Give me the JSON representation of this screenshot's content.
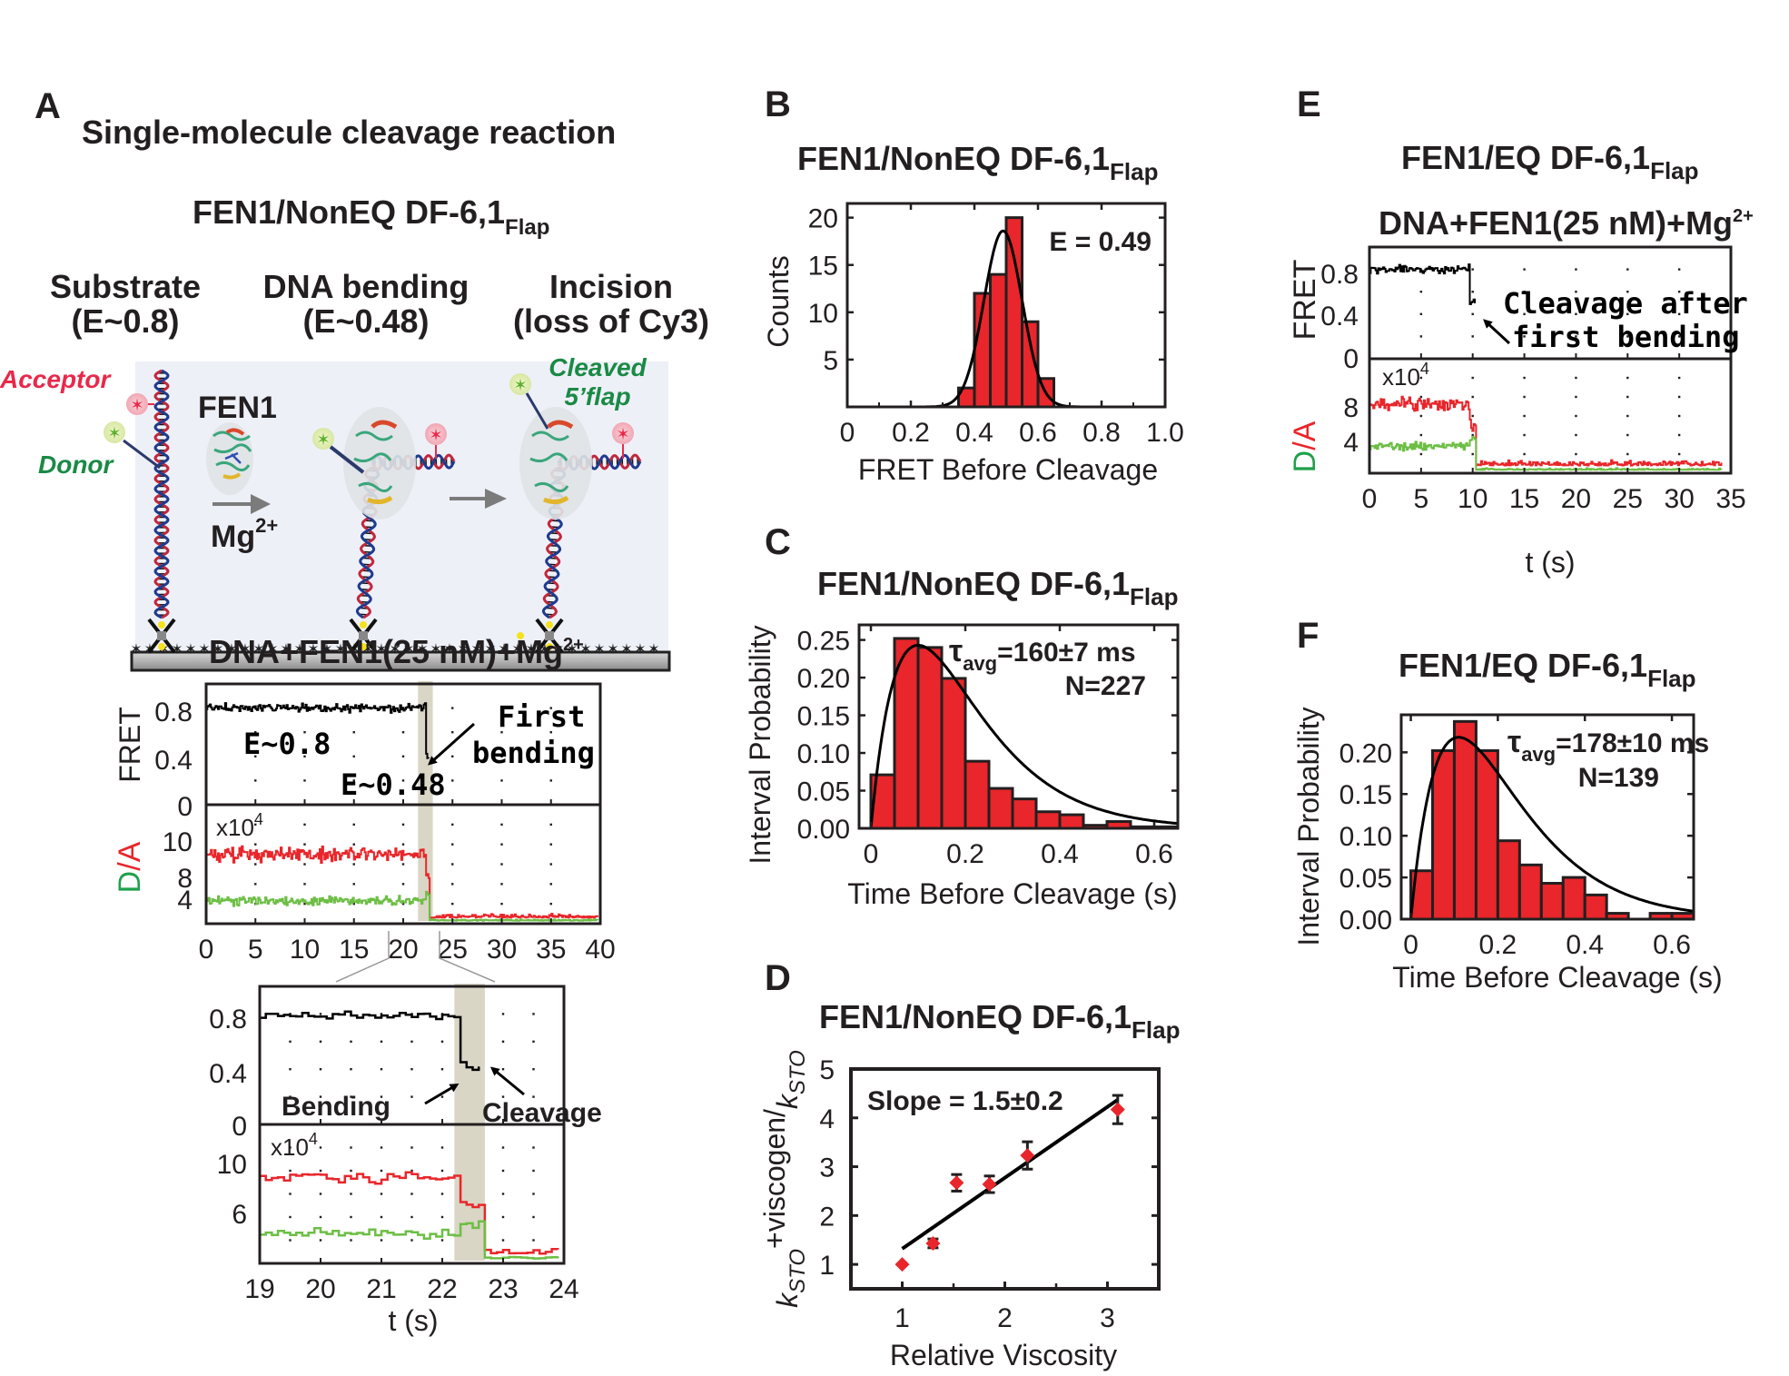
{
  "panel_labels": {
    "A": "A",
    "B": "B",
    "C": "C",
    "D": "D",
    "E": "E",
    "F": "F"
  },
  "panelA": {
    "title": "Single-molecule cleavage reaction",
    "subtitle_main": "FEN1/NonEQ DF-6,1",
    "subtitle_sub": "Flap",
    "stages": [
      {
        "line1": "Substrate",
        "line2": "(E~0.8)"
      },
      {
        "line1": "DNA bending",
        "line2": "(E~0.48)"
      },
      {
        "line1": "Incision",
        "line2": "(loss of Cy3)"
      }
    ],
    "schematic": {
      "acceptor_label": "Acceptor",
      "donor_label": "Donor",
      "enzyme_label": "FEN1",
      "cofactor_main": "Mg",
      "cofactor_sup": "2+",
      "cleaved_line1": "Cleaved",
      "cleaved_line2": "5’flap",
      "colors": {
        "acceptor": "#e8294a",
        "donor": "#1a8a45",
        "background": "#eef0f8"
      }
    },
    "trace_title_main": "DNA+FEN1(25 nM)+Mg",
    "trace_title_sup": "2+",
    "trace": {
      "fret_label": "FRET",
      "da_label_d": "D",
      "da_label_slash": "/",
      "da_label_a": "A",
      "multiplier_main": "x10",
      "multiplier_sup": "4",
      "fret_ticks": [
        "0.8",
        "0.4",
        "0"
      ],
      "da_ticks": [
        "10",
        "8",
        "4"
      ],
      "x_ticks": [
        "0",
        "5",
        "10",
        "15",
        "20",
        "25",
        "30",
        "35",
        "40"
      ],
      "annotation_high": "E~0.8",
      "annotation_low": "E~0.48",
      "annotation_arrow_line1": "First",
      "annotation_arrow_line2": "bending",
      "xlim": [
        0,
        40
      ],
      "fret_ylim": [
        0,
        1.0
      ],
      "da_ylim": [
        0,
        12
      ],
      "highlight_window_s": [
        21.5,
        23.0
      ],
      "zoom_window_s": [
        19,
        24
      ]
    },
    "zoom_trace": {
      "fret_ticks": [
        "0.8",
        "0.4",
        "0"
      ],
      "da_ticks": [
        "10",
        "6"
      ],
      "x_ticks": [
        "19",
        "20",
        "21",
        "22",
        "23",
        "24"
      ],
      "multiplier_main": "x10",
      "multiplier_sup": "4",
      "xlabel": "t (s)",
      "bending_label": "Bending",
      "cleavage_label": "Cleavage",
      "xlim": [
        19,
        24
      ],
      "highlight_window_s": [
        22.2,
        22.7
      ]
    }
  },
  "chart_data": [
    {
      "id": "B",
      "type": "bar",
      "title": "FEN1/NonEQ DF-6,1 Flap",
      "xlabel": "FRET Before Cleavage",
      "ylabel": "Counts",
      "bin_edges": [
        0.35,
        0.4,
        0.45,
        0.5,
        0.55,
        0.6,
        0.65
      ],
      "values": [
        2,
        12,
        14,
        20,
        9,
        3
      ],
      "fit": {
        "type": "gaussian",
        "mean": 0.49,
        "sigma": 0.06,
        "peak": 18.6
      },
      "annotation": "E = 0.49",
      "xlim": [
        0,
        1.0
      ],
      "ylim": [
        0,
        21.5
      ],
      "x_ticks": [
        "0",
        "0.2",
        "0.4",
        "0.6",
        "0.8",
        "1.0"
      ],
      "y_ticks": [
        "5",
        "10",
        "15",
        "20"
      ],
      "bar_color": "#e8262b"
    },
    {
      "id": "C",
      "type": "bar",
      "title": "FEN1/NonEQ DF-6,1 Flap",
      "xlabel": "Time Before Cleavage (s)",
      "ylabel": "Interval Probability",
      "bin_width": 0.05,
      "bin_start": 0,
      "values": [
        0.071,
        0.252,
        0.24,
        0.199,
        0.089,
        0.053,
        0.039,
        0.022,
        0.018,
        0.004,
        0.009,
        0.002,
        0.002
      ],
      "fit": {
        "type": "gamma",
        "peak_x": 0.1,
        "peak_y": 0.243
      },
      "annotation_tau": "τ",
      "annotation_sub": "avg",
      "annotation_value": "=160±7 ms",
      "annotation_n": "N=227",
      "xlim": [
        -0.025,
        0.65
      ],
      "ylim": [
        0,
        0.27
      ],
      "x_ticks": [
        "0",
        "0.2",
        "0.4",
        "0.6"
      ],
      "y_ticks": [
        "0.00",
        "0.05",
        "0.10",
        "0.15",
        "0.20",
        "0.25"
      ],
      "bar_color": "#e8262b"
    },
    {
      "id": "D",
      "type": "scatter",
      "title": "FEN1/NonEQ DF-6,1 Flap",
      "xlabel": "Relative Viscosity",
      "ylabel": "k_STO +viscogen / k_STO",
      "x": [
        1.0,
        1.3,
        1.53,
        1.85,
        2.22,
        3.1
      ],
      "y": [
        1.0,
        1.43,
        2.67,
        2.64,
        3.23,
        4.17
      ],
      "yerr": [
        0.0,
        0.09,
        0.17,
        0.17,
        0.28,
        0.29
      ],
      "fit_line": {
        "x": [
          1.0,
          3.1
        ],
        "y": [
          1.32,
          4.37
        ]
      },
      "annotation": "Slope = 1.5±0.2",
      "xlim": [
        0.5,
        3.5
      ],
      "ylim": [
        0.5,
        5
      ],
      "x_ticks": [
        "1",
        "2",
        "3"
      ],
      "y_ticks": [
        "1",
        "2",
        "3",
        "4",
        "5"
      ],
      "point_color": "#e8262b"
    },
    {
      "id": "F",
      "type": "bar",
      "title": "FEN1/EQ DF-6,1 Flap",
      "xlabel": "Time Before Cleavage (s)",
      "ylabel": "Interval Probability",
      "bin_width": 0.05,
      "bin_start": 0,
      "values": [
        0.058,
        0.202,
        0.237,
        0.202,
        0.094,
        0.065,
        0.043,
        0.05,
        0.029,
        0.007,
        0.0,
        0.007,
        0.007
      ],
      "fit": {
        "type": "gamma",
        "peak_x": 0.11,
        "peak_y": 0.218
      },
      "annotation_tau": "τ",
      "annotation_sub": "avg",
      "annotation_value": "=178±10 ms",
      "annotation_n": "N=139",
      "xlim": [
        -0.022,
        0.65
      ],
      "ylim": [
        0,
        0.245
      ],
      "x_ticks": [
        "0",
        "0.2",
        "0.4",
        "0.6"
      ],
      "y_ticks": [
        "0.00",
        "0.05",
        "0.10",
        "0.15",
        "0.20"
      ],
      "bar_color": "#e8262b"
    }
  ],
  "panelE": {
    "title_main": "FEN1/EQ DF-6,1",
    "title_sub": "Flap",
    "trace_title_main": "DNA+FEN1(25 nM)+Mg",
    "trace_title_sup": "2+",
    "fret_label": "FRET",
    "da_label_d": "D",
    "da_label_slash": "/",
    "da_label_a": "A",
    "multiplier_main": "x10",
    "multiplier_sup": "4",
    "fret_ticks": [
      "0.8",
      "0.4",
      "0"
    ],
    "da_ticks": [
      "8",
      "4"
    ],
    "x_ticks": [
      "0",
      "5",
      "10",
      "15",
      "20",
      "25",
      "30",
      "35"
    ],
    "xlabel": "t (s)",
    "annotation_line1": "Cleavage after",
    "annotation_line2": "first bending",
    "xlim": [
      0,
      35
    ]
  },
  "titles": {
    "B_main": "FEN1/NonEQ DF-6,1",
    "B_sub": "Flap",
    "C_main": "FEN1/NonEQ DF-6,1",
    "C_sub": "Flap",
    "D_main": "FEN1/NonEQ DF-6,1",
    "D_sub": "Flap",
    "F_main": "FEN1/EQ DF-6,1",
    "F_sub": "Flap"
  },
  "ylabels": {
    "D_k1": "k",
    "D_s1": "STO",
    "D_plus": "+viscogen/",
    "D_k2": "k",
    "D_s2": "STO"
  },
  "colors": {
    "red_trace": "#e8262b",
    "green_trace": "#6dbe45",
    "fret_trace": "#000000",
    "highlight": "#d9d6c5",
    "da_green_label": "#1fa04a",
    "da_red_label": "#e8262b"
  }
}
